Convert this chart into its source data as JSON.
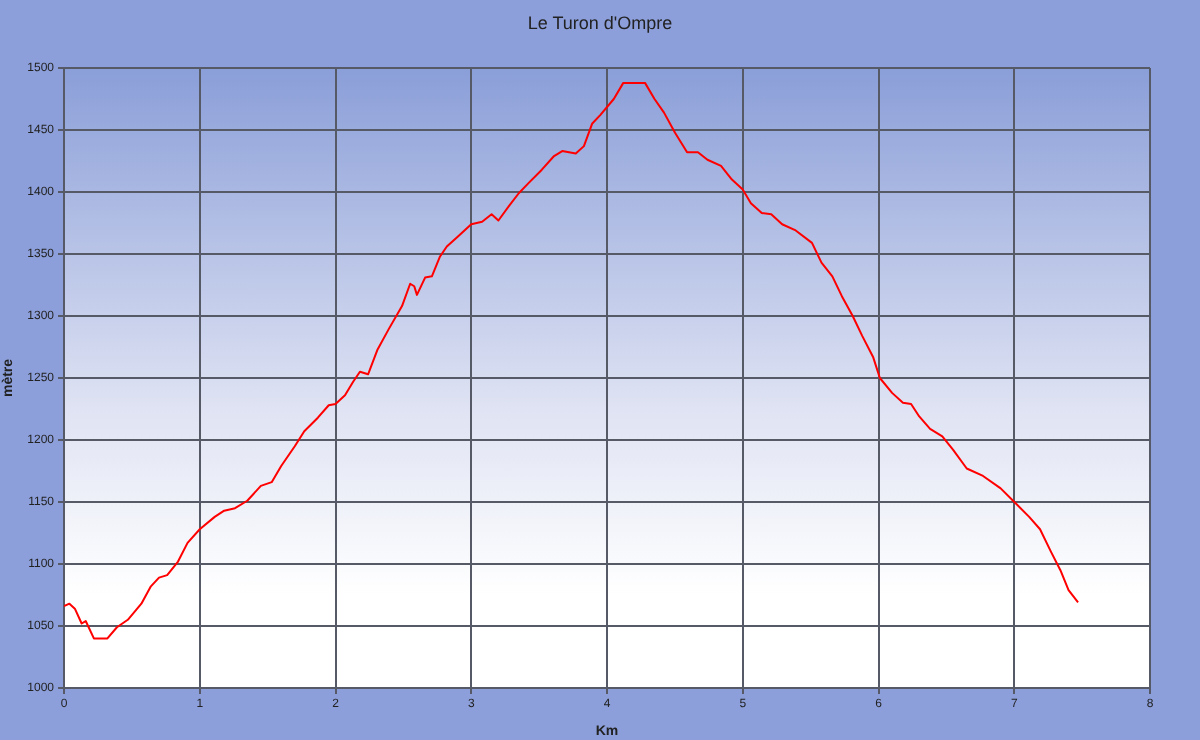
{
  "chart_data": {
    "type": "line",
    "title": "Le Turon d'Ompre",
    "xlabel": "Km",
    "ylabel": "mètre",
    "xlim": [
      0,
      8
    ],
    "xticks": [
      0,
      1,
      2,
      3,
      4,
      5,
      6,
      7,
      8
    ],
    "ylim": [
      1000,
      1500
    ],
    "yticks": [
      1000,
      1050,
      1100,
      1150,
      1200,
      1250,
      1300,
      1350,
      1400,
      1450,
      1500
    ],
    "grid": true,
    "legend": false,
    "marker": "none",
    "line_style": "solid",
    "x": [
      0,
      0.04,
      0.08,
      0.13,
      0.16,
      0.22,
      0.32,
      0.39,
      0.47,
      0.57,
      0.64,
      0.7,
      0.76,
      0.84,
      0.91,
      1.0,
      1.11,
      1.18,
      1.26,
      1.35,
      1.45,
      1.53,
      1.6,
      1.7,
      1.77,
      1.87,
      1.95,
      2.0,
      2.07,
      2.13,
      2.18,
      2.24,
      2.31,
      2.39,
      2.49,
      2.55,
      2.58,
      2.6,
      2.66,
      2.71,
      2.77,
      2.82,
      2.9,
      3.0,
      3.08,
      3.15,
      3.2,
      3.28,
      3.35,
      3.42,
      3.52,
      3.61,
      3.67,
      3.77,
      3.83,
      3.89,
      3.95,
      4.05,
      4.12,
      4.28,
      4.35,
      4.42,
      4.5,
      4.59,
      4.67,
      4.74,
      4.84,
      4.92,
      5.0,
      5.06,
      5.14,
      5.21,
      5.29,
      5.39,
      5.51,
      5.58,
      5.66,
      5.73,
      5.81,
      5.88,
      5.96,
      6.01,
      6.1,
      6.18,
      6.24,
      6.3,
      6.38,
      6.47,
      6.55,
      6.65,
      6.77,
      6.9,
      7.01,
      7.11,
      7.19,
      7.27,
      7.34,
      7.4,
      7.47
    ],
    "series": [
      {
        "color": "#ff0000",
        "values": [
          1066,
          1068,
          1064,
          1052,
          1054,
          1040,
          1040,
          1049,
          1055,
          1068,
          1082,
          1089,
          1091,
          1102,
          1117,
          1128,
          1138,
          1143,
          1145,
          1151,
          1163,
          1166,
          1179,
          1195,
          1207,
          1218,
          1228,
          1229,
          1236,
          1247,
          1255,
          1253,
          1273,
          1289,
          1308,
          1326,
          1324,
          1317,
          1331,
          1332,
          1348,
          1356,
          1364,
          1374,
          1376,
          1382,
          1377,
          1389,
          1399,
          1407,
          1418,
          1429,
          1433,
          1431,
          1437,
          1455,
          1462,
          1475,
          1488,
          1488,
          1475,
          1464,
          1448,
          1432,
          1432,
          1426,
          1421,
          1410,
          1402,
          1391,
          1383,
          1382,
          1374,
          1369,
          1359,
          1343,
          1332,
          1316,
          1300,
          1284,
          1267,
          1250,
          1238,
          1230,
          1229,
          1219,
          1209,
          1203,
          1192,
          1177,
          1171,
          1161,
          1149,
          1138,
          1128,
          1110,
          1095,
          1079,
          1069
        ]
      }
    ]
  }
}
